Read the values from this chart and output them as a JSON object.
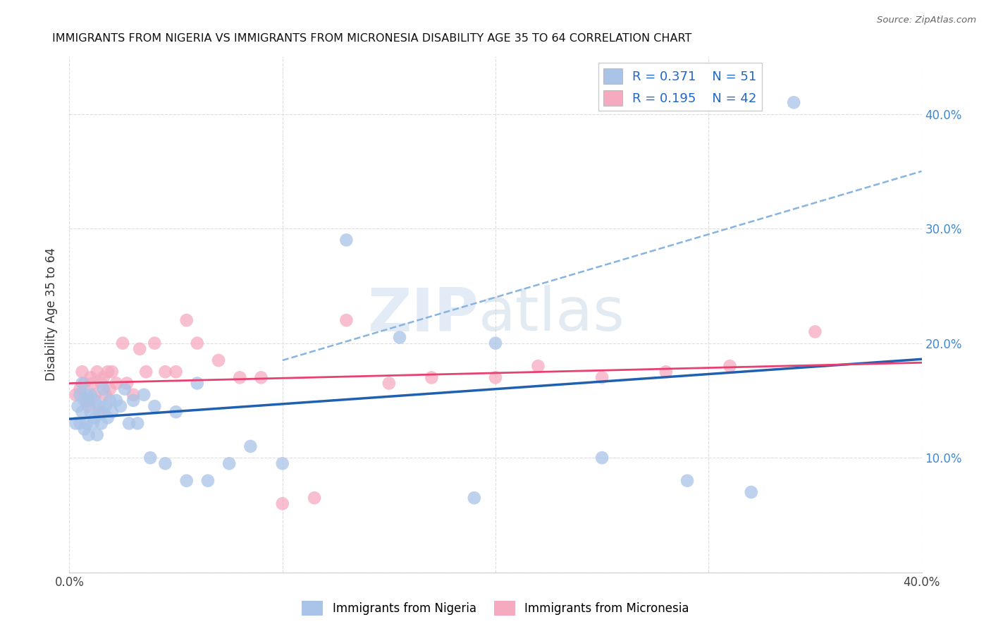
{
  "title": "IMMIGRANTS FROM NIGERIA VS IMMIGRANTS FROM MICRONESIA DISABILITY AGE 35 TO 64 CORRELATION CHART",
  "source": "Source: ZipAtlas.com",
  "ylabel": "Disability Age 35 to 64",
  "xlim": [
    0.0,
    0.4
  ],
  "ylim": [
    0.0,
    0.45
  ],
  "nigeria_R": 0.371,
  "nigeria_N": 51,
  "micronesia_R": 0.195,
  "micronesia_N": 42,
  "nigeria_color": "#aac4e8",
  "micronesia_color": "#f5aabf",
  "nigeria_line_color": "#2060b0",
  "micronesia_line_color": "#e84070",
  "nigeria_dashed_color": "#88b4e0",
  "nigeria_x": [
    0.003,
    0.004,
    0.005,
    0.005,
    0.006,
    0.006,
    0.007,
    0.007,
    0.008,
    0.008,
    0.009,
    0.009,
    0.01,
    0.01,
    0.011,
    0.012,
    0.012,
    0.013,
    0.014,
    0.015,
    0.016,
    0.016,
    0.017,
    0.018,
    0.019,
    0.02,
    0.022,
    0.024,
    0.026,
    0.028,
    0.03,
    0.032,
    0.035,
    0.038,
    0.04,
    0.045,
    0.05,
    0.055,
    0.06,
    0.065,
    0.075,
    0.085,
    0.1,
    0.13,
    0.155,
    0.19,
    0.2,
    0.25,
    0.29,
    0.32,
    0.34
  ],
  "nigeria_y": [
    0.13,
    0.145,
    0.13,
    0.155,
    0.14,
    0.165,
    0.125,
    0.15,
    0.13,
    0.155,
    0.12,
    0.15,
    0.14,
    0.155,
    0.13,
    0.135,
    0.15,
    0.12,
    0.145,
    0.13,
    0.14,
    0.16,
    0.145,
    0.135,
    0.15,
    0.14,
    0.15,
    0.145,
    0.16,
    0.13,
    0.15,
    0.13,
    0.155,
    0.1,
    0.145,
    0.095,
    0.14,
    0.08,
    0.165,
    0.08,
    0.095,
    0.11,
    0.095,
    0.29,
    0.205,
    0.065,
    0.2,
    0.1,
    0.08,
    0.07,
    0.41
  ],
  "micronesia_x": [
    0.003,
    0.005,
    0.006,
    0.007,
    0.008,
    0.009,
    0.01,
    0.011,
    0.012,
    0.013,
    0.014,
    0.015,
    0.016,
    0.017,
    0.018,
    0.019,
    0.02,
    0.022,
    0.025,
    0.027,
    0.03,
    0.033,
    0.036,
    0.04,
    0.045,
    0.05,
    0.055,
    0.06,
    0.07,
    0.08,
    0.09,
    0.1,
    0.115,
    0.13,
    0.15,
    0.17,
    0.2,
    0.22,
    0.25,
    0.28,
    0.31,
    0.35
  ],
  "micronesia_y": [
    0.155,
    0.16,
    0.175,
    0.165,
    0.15,
    0.145,
    0.17,
    0.165,
    0.155,
    0.175,
    0.14,
    0.165,
    0.17,
    0.155,
    0.175,
    0.16,
    0.175,
    0.165,
    0.2,
    0.165,
    0.155,
    0.195,
    0.175,
    0.2,
    0.175,
    0.175,
    0.22,
    0.2,
    0.185,
    0.17,
    0.17,
    0.06,
    0.065,
    0.22,
    0.165,
    0.17,
    0.17,
    0.18,
    0.17,
    0.175,
    0.18,
    0.21
  ],
  "watermark_zip": "ZIP",
  "watermark_atlas": "atlas",
  "legend_label_nigeria": "Immigrants from Nigeria",
  "legend_label_micronesia": "Immigrants from Micronesia",
  "grid_color": "#dddddd",
  "background_color": "#ffffff"
}
